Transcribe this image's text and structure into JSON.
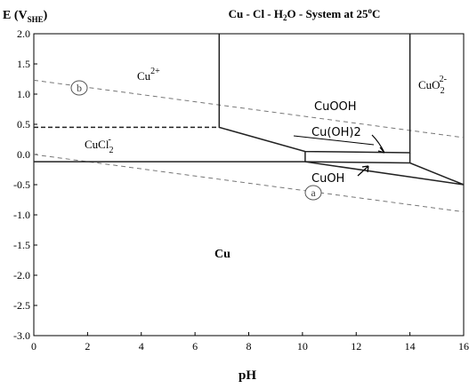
{
  "chart_data": {
    "type": "line",
    "title": {
      "main": "Cu - Cl - H",
      "sub2": "2",
      "mid": "O - System at 25",
      "sup": "o",
      "end": "C"
    },
    "ylabel": {
      "pre": "E (V",
      "sub": "SHE",
      "post": ")"
    },
    "xlabel": "pH",
    "xlim": [
      0,
      16
    ],
    "ylim": [
      -3.0,
      2.0
    ],
    "x_ticks": [
      "0",
      "2",
      "4",
      "6",
      "8",
      "10",
      "12",
      "14",
      "16"
    ],
    "y_ticks": [
      "2.0",
      "1.5",
      "1.0",
      "0.5",
      "0.0",
      "-0.5",
      "-1.0",
      "-1.5",
      "-2.0",
      "-2.5",
      "-3.0"
    ],
    "grid": false,
    "boundaries": [
      {
        "style": "solid",
        "points": [
          [
            0,
            -0.12
          ],
          [
            10.1,
            -0.12
          ],
          [
            14.0,
            -0.14
          ],
          [
            16.0,
            -0.5
          ]
        ]
      },
      {
        "style": "solid",
        "points": [
          [
            6.9,
            2.0
          ],
          [
            6.9,
            0.45
          ],
          [
            10.1,
            0.05
          ],
          [
            14.0,
            0.03
          ],
          [
            14.0,
            2.0
          ]
        ]
      },
      {
        "style": "solid",
        "points": [
          [
            10.1,
            0.05
          ],
          [
            10.1,
            -0.12
          ]
        ]
      },
      {
        "style": "solid",
        "points": [
          [
            14.0,
            0.03
          ],
          [
            14.0,
            -0.14
          ]
        ]
      },
      {
        "style": "solid",
        "points": [
          [
            10.1,
            -0.12
          ],
          [
            16.0,
            -0.5
          ]
        ]
      },
      {
        "style": "dashed",
        "points": [
          [
            0,
            0.45
          ],
          [
            6.9,
            0.45
          ]
        ]
      }
    ],
    "water_lines": [
      {
        "name": "a",
        "style": "dashed",
        "points": [
          [
            0,
            0.0
          ],
          [
            16,
            -0.95
          ]
        ]
      },
      {
        "name": "b",
        "style": "dashed",
        "points": [
          [
            0,
            1.23
          ],
          [
            16,
            0.28
          ]
        ]
      }
    ],
    "regions": [
      {
        "label": "Cu",
        "sup": "2+",
        "x": 4.3,
        "y": 1.25
      },
      {
        "label": "CuO",
        "sub": "2",
        "sup": "2-",
        "x": 14.5,
        "y": 1.1
      },
      {
        "label": "CuCl",
        "sub": "2",
        "sup": "-",
        "x": 1.9,
        "y": 0.12
      },
      {
        "label": "Cu",
        "x": 7.1,
        "y": -1.65
      }
    ],
    "handwritten": [
      {
        "text": "CuOOH",
        "x": 10.5,
        "y": 0.8
      },
      {
        "text": "Cu(OH)2",
        "x": 10.3,
        "y": 0.35
      },
      {
        "text": "CuOH",
        "x": 10.3,
        "y": -0.45
      }
    ]
  }
}
